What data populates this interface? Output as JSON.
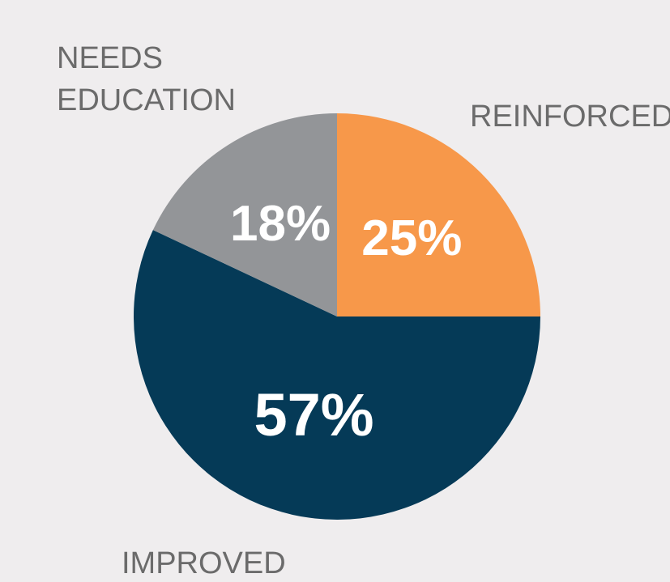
{
  "chart_data": {
    "type": "pie",
    "categories": [
      "REINFORCED",
      "IMPROVED",
      "NEEDS EDUCATION"
    ],
    "values": [
      25,
      57,
      18
    ],
    "value_labels": [
      "25%",
      "57%",
      "18%"
    ],
    "colors": [
      "#f7984a",
      "#053a57",
      "#939598"
    ]
  }
}
